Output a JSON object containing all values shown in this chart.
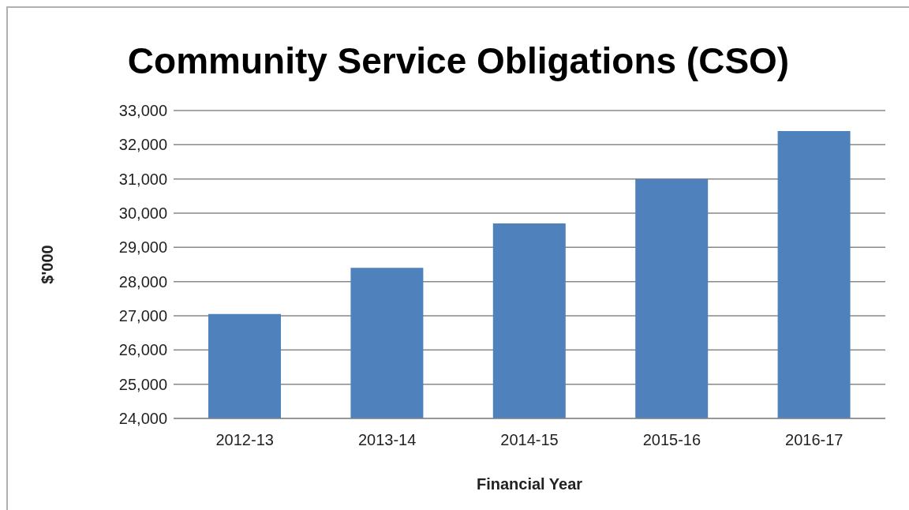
{
  "chart_data": {
    "type": "bar",
    "title": "Community Service Obligations (CSO)",
    "xlabel": "Financial Year",
    "ylabel": "$'000",
    "categories": [
      "2012-13",
      "2013-14",
      "2014-15",
      "2015-16",
      "2016-17"
    ],
    "values": [
      27050,
      28400,
      29700,
      31000,
      32400
    ],
    "color": "#4f81bd",
    "ylim": [
      24000,
      33000
    ],
    "yticks": [
      {
        "value": 24000,
        "label": "24,000"
      },
      {
        "value": 25000,
        "label": "25,000"
      },
      {
        "value": 26000,
        "label": "26,000"
      },
      {
        "value": 27000,
        "label": "27,000"
      },
      {
        "value": 28000,
        "label": "28,000"
      },
      {
        "value": 29000,
        "label": "29,000"
      },
      {
        "value": 30000,
        "label": "30,000"
      },
      {
        "value": 31000,
        "label": "31,000"
      },
      {
        "value": 32000,
        "label": "32,000"
      },
      {
        "value": 33000,
        "label": "33,000"
      }
    ],
    "grid": "y"
  }
}
